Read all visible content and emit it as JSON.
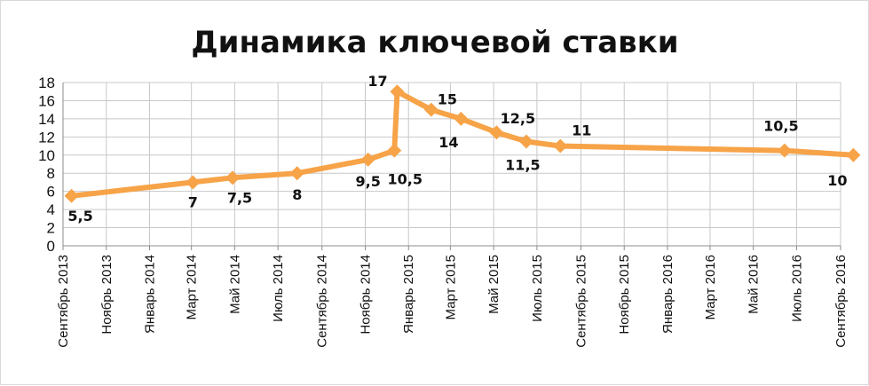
{
  "chart_data": {
    "type": "line",
    "title": "Динамика ключевой ставки",
    "xlabel": "",
    "ylabel": "",
    "ylim": [
      0,
      18
    ],
    "yticks": [
      "0",
      "2",
      "4",
      "6",
      "8",
      "10",
      "12",
      "14",
      "16",
      "18"
    ],
    "grid": true,
    "legend": "none",
    "line_color": "#F7A348",
    "x_ticks": [
      "Сентябрь 2013",
      "Ноябрь 2013",
      "Январь 2014",
      "Март 2014",
      "Май 2014",
      "Июль 2014",
      "Сентябрь 2014",
      "Ноябрь 2014",
      "Январь 2015",
      "Март 2015",
      "Май 2015",
      "Июль 2015",
      "Сентябрь 2015",
      "Ноябрь 2015",
      "Январь 2016",
      "Март 2016",
      "Май 2016",
      "Июль 2016",
      "Сентябрь 2016"
    ],
    "series": [
      {
        "points": [
          {
            "date": "2013-09-13",
            "value": 5.5,
            "label": "5,5"
          },
          {
            "date": "2014-03-03",
            "value": 7,
            "label": "7"
          },
          {
            "date": "2014-04-28",
            "value": 7.5,
            "label": "7,5"
          },
          {
            "date": "2014-07-28",
            "value": 8,
            "label": "8"
          },
          {
            "date": "2014-11-05",
            "value": 9.5,
            "label": "9,5"
          },
          {
            "date": "2014-12-12",
            "value": 10.5,
            "label": "10,5"
          },
          {
            "date": "2014-12-16",
            "value": 17,
            "label": "17"
          },
          {
            "date": "2015-02-02",
            "value": 15,
            "label": "15"
          },
          {
            "date": "2015-03-16",
            "value": 14,
            "label": "14"
          },
          {
            "date": "2015-05-05",
            "value": 12.5,
            "label": "12,5"
          },
          {
            "date": "2015-06-16",
            "value": 11.5,
            "label": "11,5"
          },
          {
            "date": "2015-08-03",
            "value": 11,
            "label": "11"
          },
          {
            "date": "2016-06-14",
            "value": 10.5,
            "label": "10,5"
          },
          {
            "date": "2016-09-19",
            "value": 10,
            "label": "10"
          }
        ]
      }
    ]
  }
}
